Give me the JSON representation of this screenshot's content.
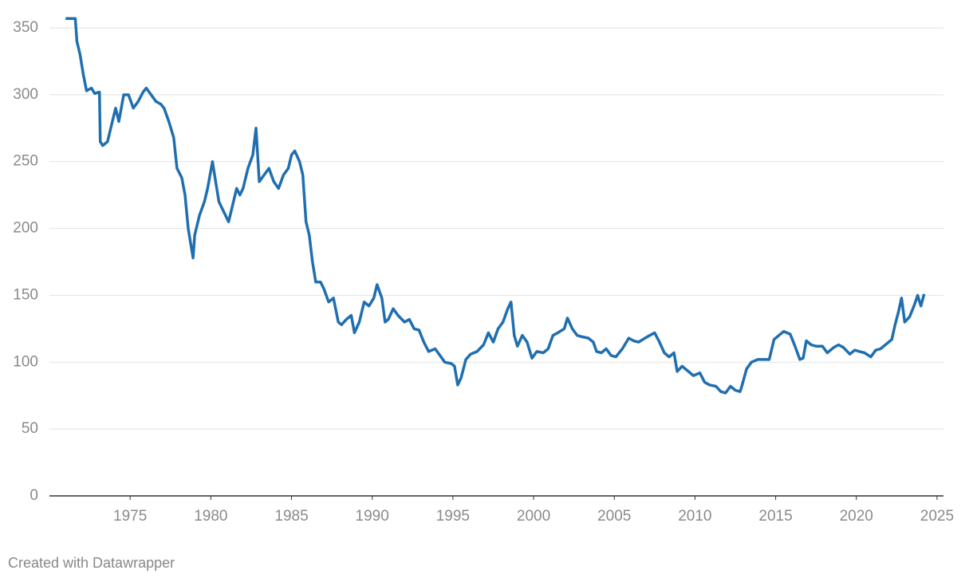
{
  "chart_data": {
    "type": "line",
    "footer": "Created with Datawrapper",
    "x": [
      1971.0,
      1971.6,
      1971.7,
      1971.9,
      1972.1,
      1972.3,
      1972.6,
      1972.8,
      1973.1,
      1973.15,
      1973.3,
      1973.6,
      1973.9,
      1974.1,
      1974.3,
      1974.6,
      1974.9,
      1975.2,
      1975.5,
      1975.8,
      1976.0,
      1976.3,
      1976.6,
      1976.9,
      1977.1,
      1977.4,
      1977.7,
      1977.9,
      1978.2,
      1978.4,
      1978.6,
      1978.8,
      1978.9,
      1979.0,
      1979.3,
      1979.6,
      1979.8,
      1980.1,
      1980.3,
      1980.5,
      1980.7,
      1980.9,
      1981.1,
      1981.3,
      1981.6,
      1981.8,
      1982.0,
      1982.3,
      1982.6,
      1982.8,
      1983.0,
      1983.3,
      1983.6,
      1983.9,
      1984.2,
      1984.5,
      1984.8,
      1985.0,
      1985.2,
      1985.5,
      1985.7,
      1985.9,
      1986.1,
      1986.3,
      1986.5,
      1986.8,
      1987.0,
      1987.3,
      1987.6,
      1987.9,
      1988.1,
      1988.4,
      1988.7,
      1988.9,
      1989.2,
      1989.5,
      1989.8,
      1990.1,
      1990.3,
      1990.6,
      1990.8,
      1991.0,
      1991.3,
      1991.6,
      1992.0,
      1992.3,
      1992.6,
      1992.9,
      1993.2,
      1993.5,
      1993.9,
      1994.2,
      1994.5,
      1994.9,
      1995.1,
      1995.3,
      1995.5,
      1995.8,
      1996.1,
      1996.5,
      1996.9,
      1997.2,
      1997.5,
      1997.8,
      1998.1,
      1998.4,
      1998.6,
      1998.8,
      1999.0,
      1999.3,
      1999.6,
      1999.9,
      2000.2,
      2000.6,
      2000.9,
      2001.2,
      2001.5,
      2001.9,
      2002.1,
      2002.4,
      2002.7,
      2003.0,
      2003.4,
      2003.7,
      2003.9,
      2004.2,
      2004.5,
      2004.8,
      2005.1,
      2005.5,
      2005.9,
      2006.2,
      2006.5,
      2006.9,
      2007.2,
      2007.5,
      2007.8,
      2008.1,
      2008.4,
      2008.7,
      2008.9,
      2009.2,
      2009.6,
      2009.9,
      2010.3,
      2010.6,
      2010.9,
      2011.3,
      2011.6,
      2011.9,
      2012.2,
      2012.5,
      2012.8,
      2012.9,
      2013.2,
      2013.5,
      2013.9,
      2014.2,
      2014.6,
      2014.9,
      2015.2,
      2015.5,
      2015.9,
      2016.2,
      2016.5,
      2016.7,
      2016.9,
      2017.2,
      2017.5,
      2017.9,
      2018.2,
      2018.6,
      2018.9,
      2019.2,
      2019.6,
      2019.9,
      2020.2,
      2020.5,
      2020.9,
      2021.2,
      2021.5,
      2021.9,
      2022.2,
      2022.4,
      2022.6,
      2022.8,
      2023.0,
      2023.3,
      2023.6,
      2023.8,
      2024.0,
      2024.2
    ],
    "series": [
      {
        "color": "#1f6fb0",
        "values": [
          357,
          357,
          340,
          330,
          315,
          303,
          305,
          301,
          302,
          265,
          262,
          265,
          280,
          290,
          280,
          300,
          300,
          290,
          295,
          302,
          305,
          300,
          295,
          293,
          290,
          280,
          268,
          245,
          238,
          225,
          200,
          185,
          178,
          195,
          210,
          220,
          230,
          250,
          235,
          220,
          215,
          210,
          205,
          215,
          230,
          225,
          230,
          245,
          255,
          275,
          235,
          240,
          245,
          235,
          230,
          240,
          245,
          255,
          258,
          250,
          240,
          205,
          195,
          175,
          160,
          160,
          155,
          145,
          148,
          130,
          128,
          132,
          135,
          122,
          130,
          145,
          142,
          148,
          158,
          148,
          130,
          132,
          140,
          135,
          130,
          132,
          125,
          124,
          115,
          108,
          110,
          105,
          100,
          99,
          97,
          83,
          88,
          102,
          106,
          108,
          113,
          122,
          115,
          125,
          130,
          140,
          145,
          120,
          112,
          120,
          115,
          103,
          108,
          107,
          110,
          120,
          122,
          125,
          133,
          125,
          120,
          119,
          118,
          115,
          108,
          107,
          110,
          105,
          104,
          110,
          118,
          116,
          115,
          118,
          120,
          122,
          115,
          107,
          104,
          107,
          93,
          97,
          93,
          90,
          92,
          85,
          83,
          82,
          78,
          77,
          82,
          79,
          78,
          82,
          95,
          100,
          102,
          102,
          102,
          117,
          120,
          123,
          121,
          112,
          102,
          103,
          116,
          113,
          112,
          112,
          107,
          111,
          113,
          111,
          106,
          109,
          108,
          107,
          104,
          109,
          110,
          114,
          117,
          128,
          137,
          148,
          130,
          134,
          143,
          150,
          142,
          151
        ]
      }
    ],
    "xlim": [
      1970,
      2025.4
    ],
    "xticks": [
      1975,
      1980,
      1985,
      1990,
      1995,
      2000,
      2005,
      2010,
      2015,
      2020,
      2025
    ],
    "ylim": [
      0,
      350
    ],
    "yticks": [
      0,
      50,
      100,
      150,
      200,
      250,
      300,
      350
    ],
    "grid": true
  }
}
